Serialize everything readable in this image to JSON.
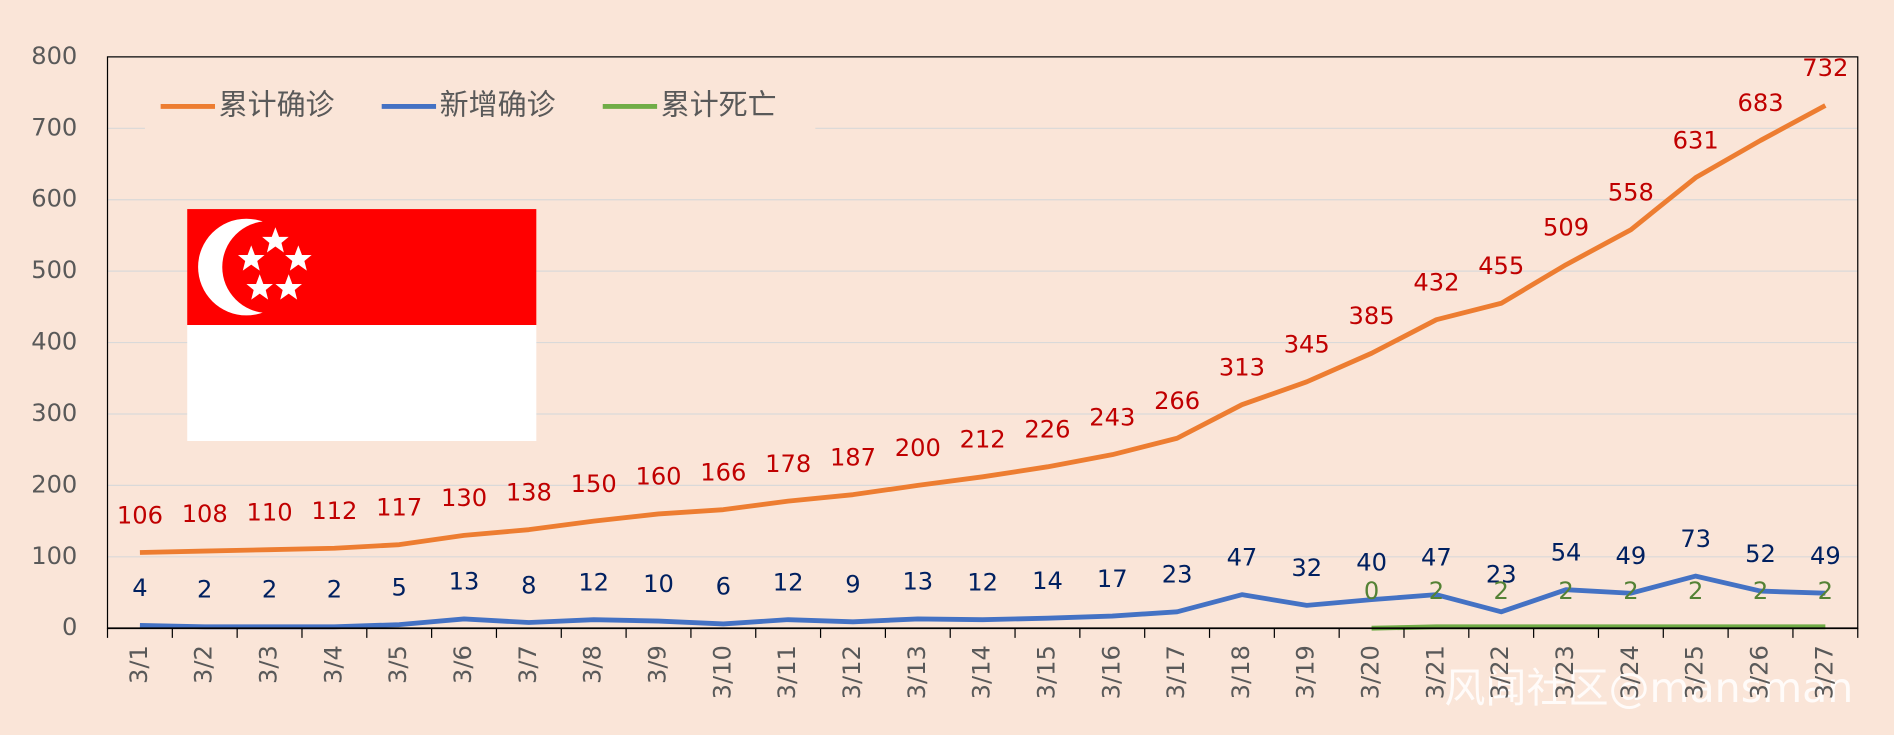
{
  "chart_data": {
    "type": "line",
    "categories": [
      "3/1",
      "3/2",
      "3/3",
      "3/4",
      "3/5",
      "3/6",
      "3/7",
      "3/8",
      "3/9",
      "3/10",
      "3/11",
      "3/12",
      "3/13",
      "3/14",
      "3/15",
      "3/16",
      "3/17",
      "3/18",
      "3/19",
      "3/20",
      "3/21",
      "3/22",
      "3/23",
      "3/24",
      "3/25",
      "3/26",
      "3/27"
    ],
    "series": [
      {
        "name": "累计确诊",
        "color": "#ed7d31",
        "label_color": "#c00000",
        "values": [
          106,
          108,
          110,
          112,
          117,
          130,
          138,
          150,
          160,
          166,
          178,
          187,
          200,
          212,
          226,
          243,
          266,
          313,
          345,
          385,
          432,
          455,
          509,
          558,
          631,
          683,
          732
        ]
      },
      {
        "name": "新增确诊",
        "color": "#4472c4",
        "label_color": "#002060",
        "values": [
          4,
          2,
          2,
          2,
          5,
          13,
          8,
          12,
          10,
          6,
          12,
          9,
          13,
          12,
          14,
          17,
          23,
          47,
          32,
          40,
          47,
          23,
          54,
          49,
          73,
          52,
          49
        ]
      },
      {
        "name": "累计死亡",
        "color": "#70ad47",
        "label_color": "#548235",
        "values": [
          null,
          null,
          null,
          null,
          null,
          null,
          null,
          null,
          null,
          null,
          null,
          null,
          null,
          null,
          null,
          null,
          null,
          null,
          null,
          0,
          2,
          2,
          2,
          2,
          2,
          2,
          2
        ]
      }
    ],
    "ylim": [
      0,
      800
    ],
    "yticks": [
      0,
      100,
      200,
      300,
      400,
      500,
      600,
      700,
      800
    ],
    "grid": true,
    "legend": "top-left",
    "watermark": "风闻社区@mansman"
  }
}
